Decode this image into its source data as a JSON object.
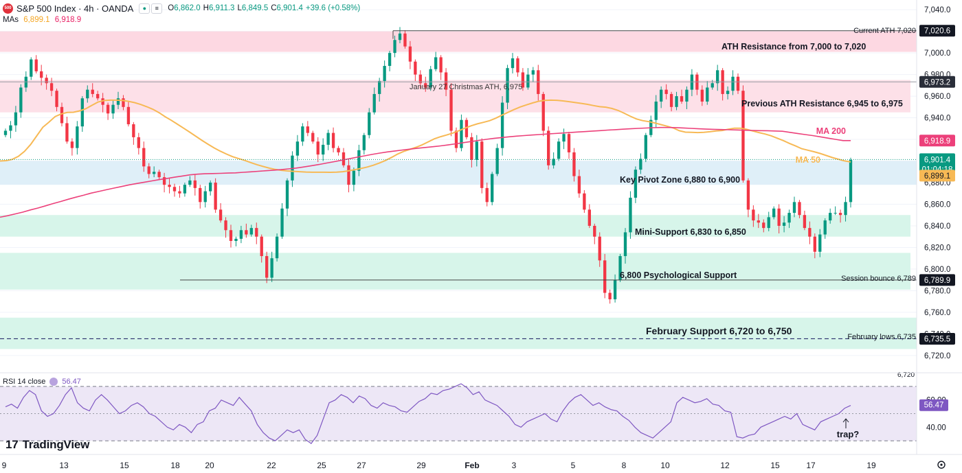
{
  "header": {
    "symbol_badge": "500",
    "title": "S&P 500 Index · 4h · OANDA",
    "btn1": "●",
    "btn2": "≡",
    "open_label": "O",
    "open": "6,862.0",
    "high_label": "H",
    "high": "6,911.3",
    "low_label": "L",
    "low": "6,849.5",
    "close_label": "C",
    "close": "6,901.4",
    "change": "+39.6 (+0.58%)"
  },
  "mas": {
    "label": "MAs",
    "ma50_value": "6,899.1",
    "ma200_value": "6,918.9"
  },
  "rsi": {
    "label": "RSI 14 close",
    "value": "56.47",
    "annotation": "trap?"
  },
  "brand": {
    "mark": "17",
    "name": "TradingView"
  },
  "colors": {
    "up": "#089981",
    "down": "#f23645",
    "ma50": "#f7b955",
    "ma200": "#ec407a",
    "ath_zone": "#fdd8e2",
    "prev_ath_zone": "#fde0e8",
    "pivot_zone": "#dfeff8",
    "support_zone": "#d7f5ea",
    "rsi_line": "#7e57c2",
    "rsi_band": "#ede7f6"
  },
  "chart_data": [
    {
      "type": "candlestick",
      "title": "S&P 500 Index · 4h · OANDA",
      "ylim": [
        6711,
        7049
      ],
      "yticks": [
        6720,
        6740,
        6760,
        6780,
        6800,
        6820,
        6840,
        6860,
        6880,
        6900,
        6920,
        6940,
        6960,
        6980,
        7000,
        7020,
        7040
      ],
      "ytick_labels": [
        "6,720.0",
        "6,740.0",
        "6,760.0",
        "6,780.0",
        "6,800.0",
        "6,820.0",
        "6,840.0",
        "6,860.0",
        "6,880.0",
        "6,900.0",
        "6,920.0",
        "6,940.0",
        "6,960.0",
        "6,980.0",
        "7,000.0",
        "7,020.0",
        "7,040.0"
      ],
      "x_labels": [
        "9",
        "13",
        "15",
        "18",
        "20",
        "22",
        "25",
        "27",
        "29",
        "Feb",
        "3",
        "5",
        "8",
        "10",
        "12",
        "15",
        "17",
        "19"
      ],
      "closes": [
        6928,
        6933,
        6945,
        6968,
        6978,
        6994,
        6983,
        6977,
        6972,
        6965,
        6950,
        6935,
        6918,
        6912,
        6932,
        6958,
        6966,
        6962,
        6958,
        6952,
        6944,
        6952,
        6958,
        6950,
        6934,
        6922,
        6912,
        6895,
        6888,
        6890,
        6885,
        6878,
        6876,
        6872,
        6870,
        6878,
        6882,
        6875,
        6862,
        6872,
        6880,
        6855,
        6845,
        6836,
        6826,
        6828,
        6836,
        6832,
        6838,
        6830,
        6812,
        6792,
        6810,
        6830,
        6856,
        6882,
        6905,
        6918,
        6932,
        6926,
        6918,
        6906,
        6915,
        6926,
        6912,
        6908,
        6896,
        6878,
        6891,
        6910,
        6924,
        6945,
        6962,
        6974,
        6988,
        7000,
        7012,
        7018,
        7006,
        6992,
        6980,
        6972,
        6968,
        6985,
        6996,
        6982,
        6966,
        6928,
        6912,
        6938,
        6922,
        6901,
        6918,
        6875,
        6862,
        6888,
        6912,
        6954,
        6986,
        6995,
        6982,
        6968,
        6980,
        6984,
        6962,
        6928,
        6896,
        6902,
        6918,
        6925,
        6908,
        6886,
        6870,
        6855,
        6840,
        6830,
        6808,
        6778,
        6772,
        6790,
        6812,
        6834,
        6866,
        6892,
        6902,
        6924,
        6938,
        6955,
        6966,
        6962,
        6950,
        6960,
        6955,
        6966,
        6980,
        6966,
        6955,
        6968,
        6972,
        6984,
        6962,
        6965,
        6978,
        6965,
        6882,
        6855,
        6845,
        6843,
        6838,
        6848,
        6856,
        6840,
        6843,
        6852,
        6862,
        6850,
        6838,
        6830,
        6816,
        6832,
        6845,
        6852,
        6852,
        6850,
        6862,
        6901
      ],
      "ma50_values": [
        6900.0,
        6900.3,
        6901.5,
        6904.3,
        6908.9,
        6915.2,
        6923.2,
        6931.2,
        6936.0,
        6941.1,
        6943.6,
        6944.9,
        6945.1,
        6946.4,
        6948.3,
        6951.5,
        6954.5,
        6956.0,
        6956.3,
        6956.3,
        6956.1,
        6955.2,
        6954.0,
        6952.3,
        6950.2,
        6947.8,
        6944.7,
        6940.9,
        6937.6,
        6934.0,
        6930.4,
        6926.7,
        6922.9,
        6919.1,
        6915.5,
        6912.1,
        6909.1,
        6906.4,
        6904.0,
        6902.2,
        6900.5,
        6898.5,
        6896.6,
        6894.9,
        6893.4,
        6892.2,
        6891.4,
        6890.8,
        6890.4,
        6890.1,
        6889.8,
        6889.6,
        6889.6,
        6889.6,
        6889.5,
        6889.7,
        6890.1,
        6891.0,
        6892.0,
        6893.1,
        6894.4,
        6896.1,
        6898.2,
        6900.5,
        6903.4,
        6906.5,
        6909.0,
        6910.8,
        6912.7,
        6915.0,
        6917.8,
        6920.6,
        6922.5,
        6924.1,
        6925.9,
        6928.1,
        6930.5,
        6932.6,
        6934.4,
        6935.8,
        6937.3,
        6939.6,
        6942.4,
        6945.0,
        6947.6,
        6950.0,
        6951.9,
        6953.7,
        6955.3,
        6956.1,
        6956.3,
        6956.2,
        6955.6,
        6954.9,
        6954.1,
        6953.3,
        6952.4,
        6951.3,
        6950.3,
        6949.8,
        6948.6,
        6946.8,
        6944.2,
        6941.4,
        6938.9,
        6937.4,
        6936.4,
        6935.2,
        6933.7,
        6932.2,
        6930.6,
        6928.0,
        6926.7,
        6926.5,
        6926.3,
        6926.5,
        6927.1,
        6927.8,
        6928.2,
        6929.4,
        6930.4,
        6930.3,
        6929.3,
        6927.8,
        6926.3,
        6925.0,
        6923.3,
        6921.1,
        6918.9,
        6916.3,
        6913.9,
        6911.4,
        6910.0,
        6908.6,
        6907.0,
        6905.1,
        6903.2,
        6901.6,
        6900.1,
        6899.1
      ],
      "ma200_values": [
        6848.0,
        6849.4,
        6851.0,
        6852.7,
        6854.7,
        6856.5,
        6858.5,
        6860.6,
        6862.5,
        6864.6,
        6866.5,
        6868.3,
        6870.3,
        6871.8,
        6873.4,
        6874.9,
        6876.4,
        6877.9,
        6879.2,
        6880.4,
        6881.6,
        6882.8,
        6883.9,
        6885.0,
        6886.1,
        6887.2,
        6887.8,
        6888.2,
        6888.4,
        6888.6,
        6888.8,
        6889.0,
        6889.5,
        6890.0,
        6890.5,
        6891.0,
        6891.5,
        6892.0,
        6892.7,
        6893.5,
        6894.5,
        6895.6,
        6896.8,
        6898.1,
        6899.4,
        6900.8,
        6902.1,
        6903.5,
        6904.8,
        6906.1,
        6907.3,
        6908.4,
        6909.3,
        6910.2,
        6911.0,
        6911.8,
        6912.5,
        6913.2,
        6914.0,
        6914.9,
        6915.9,
        6917.0,
        6918.0,
        6919.0,
        6920.0,
        6920.9,
        6921.7,
        6922.4,
        6923.0,
        6923.5,
        6924.0,
        6924.5,
        6925.0,
        6925.4,
        6925.9,
        6926.3,
        6926.8,
        6927.2,
        6927.7,
        6928.1,
        6928.6,
        6929.0,
        6929.4,
        6929.8,
        6930.2,
        6930.5,
        6930.8,
        6931.0,
        6931.0,
        6930.9,
        6930.6,
        6930.2,
        6929.8,
        6929.5,
        6929.3,
        6929.1,
        6928.9,
        6928.7,
        6928.5,
        6928.3,
        6928.1,
        6928.0,
        6927.8,
        6927.5,
        6926.5,
        6925.5,
        6924.5,
        6923.5,
        6922.4,
        6921.2,
        6920.0,
        6918.9,
        6918.9
      ]
    },
    {
      "type": "line",
      "title": "RSI 14 close",
      "ylim": [
        27,
        73
      ],
      "yticks": [
        40,
        60
      ],
      "ytick_labels": [
        "40.00",
        "60.00"
      ],
      "upper_band": 70,
      "lower_band": 30,
      "mid": 50,
      "values": [
        55,
        57,
        54,
        62,
        67,
        64,
        52,
        48,
        50,
        56,
        64,
        69,
        58,
        54,
        52,
        60,
        64,
        60,
        55,
        50,
        52,
        56,
        58,
        55,
        50,
        48,
        44,
        40,
        38,
        42,
        40,
        36,
        42,
        44,
        52,
        54,
        60,
        58,
        56,
        62,
        57,
        52,
        42,
        36,
        32,
        30,
        34,
        38,
        36,
        38,
        31,
        28,
        34,
        46,
        58,
        60,
        64,
        62,
        58,
        63,
        61,
        56,
        54,
        58,
        56,
        55,
        52,
        51,
        55,
        59,
        61,
        65,
        64,
        67,
        68,
        70,
        72,
        69,
        64,
        66,
        60,
        58,
        56,
        52,
        48,
        42,
        40,
        44,
        46,
        48,
        50,
        46,
        44,
        52,
        58,
        62,
        64,
        60,
        56,
        58,
        55,
        53,
        52,
        48,
        45,
        40,
        36,
        34,
        32,
        36,
        40,
        44,
        58,
        62,
        60,
        58,
        59,
        61,
        57,
        56,
        52,
        51,
        33,
        32,
        34,
        35,
        40,
        42,
        44,
        46,
        48,
        46,
        50,
        42,
        40,
        38,
        44,
        46,
        48,
        50,
        54,
        56
      ]
    }
  ],
  "price_labels": {
    "ath": "7,020.6",
    "prev_ath": "6,973.2",
    "ma200": "6,918.9",
    "last": "6,901.4",
    "countdown": "01:04:18",
    "ma50": "6,899.1",
    "session_low": "6,789.9",
    "feb_low": "6,735.5"
  },
  "rsi_labels": {
    "last": "56.47"
  },
  "annotations": {
    "current_ath": "Current ATH 7,020",
    "ath_resistance": "ATH Resistance from 7,000 to 7,020",
    "jan27": "January 27 Christmas ATH, 6,975",
    "prev_ath_resistance": "Previous ATH Resistance 6,945 to 6,975",
    "ma200_label": "MA 200",
    "ma50_label": "MA 50",
    "pivot": "Key Pivot Zone 6,880 to 6,900",
    "mini_support": "Mini-Support 6,830 to 6,850",
    "psych_support": "6,800 Psychological Support",
    "session_bounce": "Session bounce 6,789",
    "feb_support": "February Support 6,720 to 6,750",
    "feb_lows": "February lows 6,735",
    "cut_label": "6,720"
  }
}
